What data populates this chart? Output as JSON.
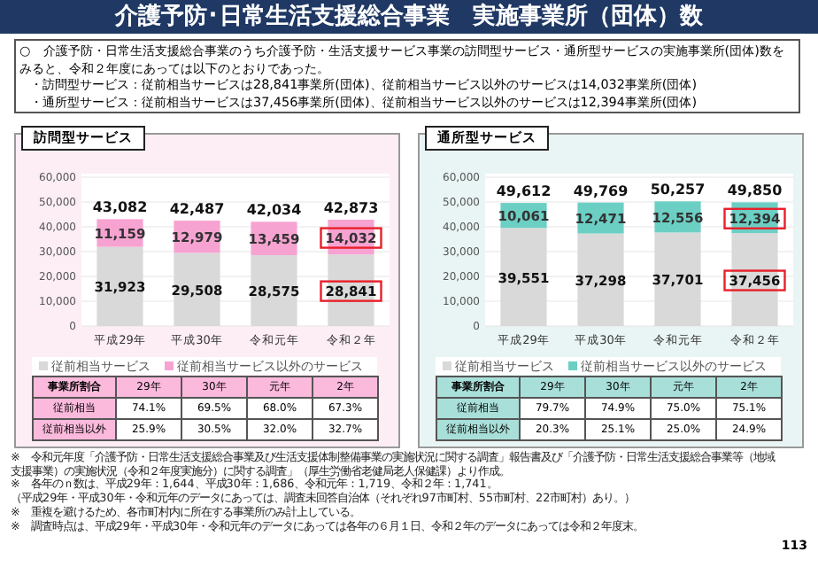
{
  "chart_data": [
    {
      "type": "other",
      "title": "介護予防･日常生活支援総合事業　実施事業所（団体）数",
      "annotations": [
        "○　介護予防・日常生活支援総合事業のうち介護予防・生活支援サービス事業の訪問型サービス・通所型サービスの実施事業所(団体)数をみると、令和２年度にあっては以下のとおりであった。",
        "・訪問型サービス：従前相当サービスは28,841事業所(団体)、従前相当サービス以外のサービスは14,032事業所(団体)",
        "・通所型サービス：従前相当サービスは37,456事業所(団体)、従前相当サービス以外のサービスは12,394事業所(団体)",
        "※　令和元年度「介護予防・日常生活支援総合事業及び生活支援体制整備事業の実施状況に関する調査」報告書及び「介護予防・日常生活支援総合事業等（地域支援事業）の実施状況（令和２年度実施分）に関する調査」（厚生労働省老健局老人保健課）より作成。",
        "※　各年のｎ数は、平成29年：1,644、平成30年：1,686、令和元年：1,719、令和２年：1,741。",
        "（平成29年・平成30年・令和元年のデータにあっては、調査未回答自治体（それぞれ97市町村、55市町村、22市町村）あり。）",
        "※　重複を避けるため、各市町村内に所在する事業所のみ計上している。",
        "※　調査時点は、平成29年・平成30年・令和元年のデータにあっては各年の６月１日、令和２年のデータにあっては令和２年度末。",
        "113"
      ]
    },
    {
      "type": "bar",
      "stacked": true,
      "title": "訪問型サービス",
      "categories": [
        "平成29年",
        "平成30年",
        "令和元年",
        "令和２年"
      ],
      "series": [
        {
          "name": "従前相当サービス",
          "color": "#d9d9d9",
          "values": [
            31923,
            29508,
            28575,
            28841
          ],
          "value_labels": [
            "31,923",
            "29,508",
            "28,575",
            "28,841"
          ]
        },
        {
          "name": "従前相当サービス以外のサービス",
          "color": "#f7a3d2",
          "values": [
            11159,
            12979,
            13459,
            14032
          ],
          "value_labels": [
            "11,159",
            "12,979",
            "13,459",
            "14,032"
          ]
        }
      ],
      "totals": [
        "43,082",
        "42,487",
        "42,034",
        "42,873"
      ],
      "grid": "y",
      "legend": "bottom",
      "ylim": [
        0,
        60000
      ],
      "yticks": [
        0,
        {
          "value": 10000,
          "label": "10,000"
        },
        {
          "value": 20000,
          "label": "20,000"
        },
        {
          "value": 30000,
          "label": "30,000"
        },
        {
          "value": 40000,
          "label": "40,000"
        },
        {
          "value": 50000,
          "label": "50,000"
        },
        {
          "value": 60000,
          "label": "60,000"
        }
      ],
      "annotations": [
        "事業所割合",
        "29年",
        "30年",
        "元年",
        "2年",
        "従前相当",
        "74.1%",
        "69.5%",
        "68.0%",
        "67.3%",
        "従前相当以外",
        "25.9%",
        "30.5%",
        "32.0%",
        "32.7%"
      ]
    },
    {
      "type": "bar",
      "stacked": true,
      "title": "通所型サービス",
      "categories": [
        "平成29年",
        "平成30年",
        "令和元年",
        "令和２年"
      ],
      "series": [
        {
          "name": "従前相当サービス",
          "color": "#d9d9d9",
          "values": [
            39551,
            37298,
            37701,
            37456
          ],
          "value_labels": [
            "39,551",
            "37,298",
            "37,701",
            "37,456"
          ]
        },
        {
          "name": "従前相当サービス以外のサービス",
          "color": "#6ccfc4",
          "values": [
            10061,
            12471,
            12556,
            12394
          ],
          "value_labels": [
            "10,061",
            "12,471",
            "12,556",
            "12,394"
          ]
        }
      ],
      "totals": [
        "49,612",
        "49,769",
        "50,257",
        "49,850"
      ],
      "grid": "y",
      "legend": "bottom",
      "ylim": [
        0,
        60000
      ],
      "yticks": [
        0,
        {
          "value": 10000,
          "label": "10,000"
        },
        {
          "value": 20000,
          "label": "20,000"
        },
        {
          "value": 30000,
          "label": "30,000"
        },
        {
          "value": 40000,
          "label": "40,000"
        },
        {
          "value": 50000,
          "label": "50,000"
        },
        {
          "value": 60000,
          "label": "60,000"
        }
      ],
      "annotations": [
        "事業所割合",
        "29年",
        "30年",
        "元年",
        "2年",
        "従前相当",
        "79.7%",
        "74.9%",
        "75.0%",
        "75.1%",
        "従前相当以外",
        "20.3%",
        "25.1%",
        "25.0%",
        "24.9%"
      ]
    }
  ]
}
